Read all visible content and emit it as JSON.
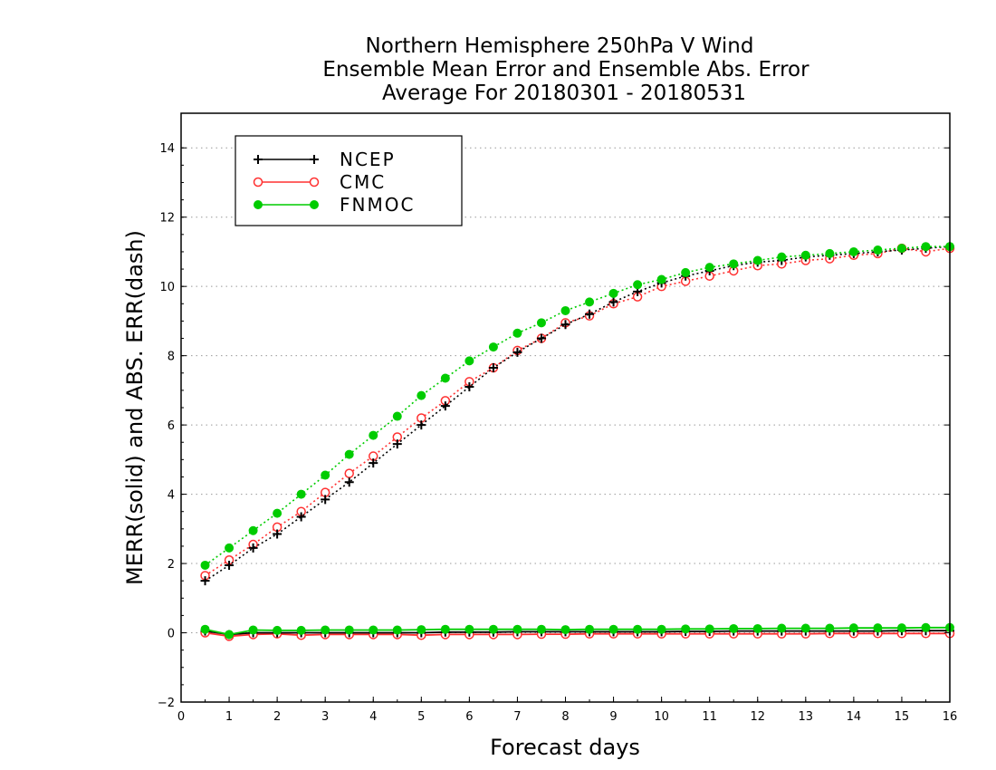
{
  "chart_data": {
    "type": "line",
    "title": [
      "Northern Hemisphere 250hPa V Wind",
      "Ensemble Mean Error and Ensemble Abs. Error",
      "Average For 20180301 - 20180531"
    ],
    "xlabel": "Forecast days",
    "ylabel": "MERR(solid) and ABS. ERR(dash)",
    "xlim": [
      0,
      16
    ],
    "ylim": [
      -2,
      15
    ],
    "xticks": [
      "0",
      "1",
      "2",
      "3",
      "4",
      "5",
      "6",
      "7",
      "8",
      "9",
      "10",
      "11",
      "12",
      "13",
      "14",
      "15",
      "16"
    ],
    "yticks": [
      "−2",
      "0",
      "2",
      "4",
      "6",
      "8",
      "10",
      "12",
      "14"
    ],
    "ytick_values": [
      -2,
      0,
      2,
      4,
      6,
      8,
      10,
      12,
      14
    ],
    "grid": "horizontal dotted",
    "legend_position": "top-left",
    "x": [
      0.5,
      1,
      1.5,
      2,
      2.5,
      3,
      3.5,
      4,
      4.5,
      5,
      5.5,
      6,
      6.5,
      7,
      7.5,
      8,
      8.5,
      9,
      9.5,
      10,
      10.5,
      11,
      11.5,
      12,
      12.5,
      13,
      13.5,
      14,
      14.5,
      15,
      15.5,
      16
    ],
    "series": [
      {
        "name": "NCEP",
        "color": "#000000",
        "marker": "plus",
        "abs_error": [
          1.5,
          1.95,
          2.45,
          2.85,
          3.35,
          3.85,
          4.35,
          4.9,
          5.45,
          6.0,
          6.55,
          7.1,
          7.65,
          8.1,
          8.5,
          8.9,
          9.2,
          9.55,
          9.85,
          10.1,
          10.3,
          10.45,
          10.6,
          10.7,
          10.75,
          10.85,
          10.9,
          10.95,
          11.0,
          11.05,
          11.1,
          11.15
        ],
        "mean_error": [
          0.05,
          -0.05,
          0.0,
          0.0,
          0.0,
          0.0,
          0.0,
          0.0,
          0.0,
          0.0,
          0.02,
          0.02,
          0.02,
          0.03,
          0.03,
          0.03,
          0.03,
          0.03,
          0.03,
          0.03,
          0.04,
          0.04,
          0.05,
          0.05,
          0.05,
          0.05,
          0.05,
          0.05,
          0.05,
          0.06,
          0.06,
          0.06
        ]
      },
      {
        "name": "CMC",
        "color": "#ff3030",
        "marker": "open-circle",
        "abs_error": [
          1.65,
          2.1,
          2.55,
          3.05,
          3.5,
          4.05,
          4.6,
          5.1,
          5.65,
          6.2,
          6.7,
          7.25,
          7.65,
          8.15,
          8.5,
          8.95,
          9.15,
          9.5,
          9.7,
          10.0,
          10.15,
          10.3,
          10.45,
          10.6,
          10.65,
          10.75,
          10.8,
          10.9,
          10.95,
          11.1,
          11.0,
          11.1
        ],
        "mean_error": [
          0.0,
          -0.1,
          -0.05,
          -0.03,
          -0.07,
          -0.05,
          -0.05,
          -0.05,
          -0.05,
          -0.07,
          -0.05,
          -0.05,
          -0.05,
          -0.05,
          -0.04,
          -0.04,
          -0.03,
          -0.03,
          -0.03,
          -0.03,
          -0.03,
          -0.03,
          -0.03,
          -0.03,
          -0.03,
          -0.03,
          -0.02,
          -0.02,
          -0.02,
          -0.02,
          -0.02,
          -0.02
        ]
      },
      {
        "name": "FNMOC",
        "color": "#00cc00",
        "marker": "filled-circle",
        "abs_error": [
          1.95,
          2.45,
          2.95,
          3.45,
          4.0,
          4.55,
          5.15,
          5.7,
          6.25,
          6.85,
          7.35,
          7.85,
          8.25,
          8.65,
          8.95,
          9.3,
          9.55,
          9.8,
          10.05,
          10.2,
          10.4,
          10.55,
          10.65,
          10.75,
          10.85,
          10.9,
          10.95,
          11.0,
          11.05,
          11.1,
          11.15,
          11.15
        ],
        "mean_error": [
          0.1,
          -0.05,
          0.08,
          0.07,
          0.07,
          0.08,
          0.08,
          0.08,
          0.08,
          0.09,
          0.1,
          0.1,
          0.1,
          0.1,
          0.1,
          0.09,
          0.1,
          0.1,
          0.1,
          0.1,
          0.11,
          0.11,
          0.12,
          0.12,
          0.13,
          0.13,
          0.13,
          0.14,
          0.14,
          0.14,
          0.15,
          0.15
        ]
      }
    ]
  }
}
